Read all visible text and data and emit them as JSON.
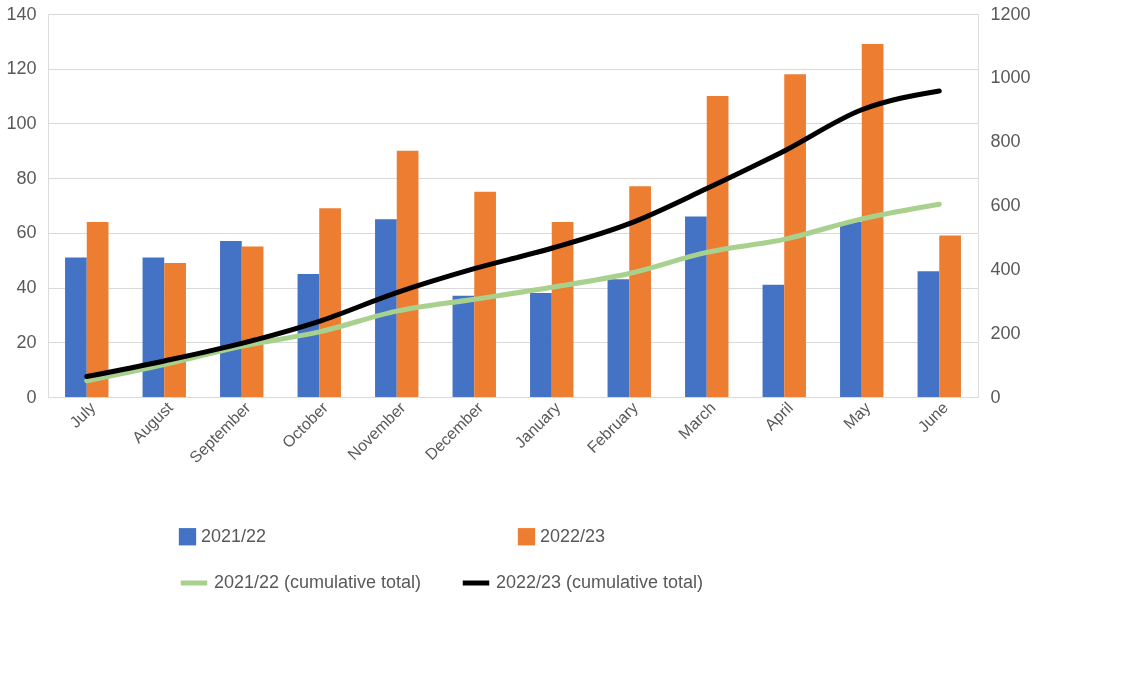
{
  "chart_data": {
    "type": "bar",
    "categories": [
      "July",
      "August",
      "September",
      "October",
      "November",
      "December",
      "January",
      "February",
      "March",
      "April",
      "May",
      "June"
    ],
    "series": [
      {
        "name": "2021/22",
        "color": "#4472c4",
        "values": [
          51,
          51,
          57,
          45,
          65,
          37,
          38,
          43,
          66,
          41,
          64,
          46
        ]
      },
      {
        "name": "2022/23",
        "color": "#ed7d31",
        "values": [
          64,
          49,
          55,
          69,
          90,
          75,
          64,
          77,
          110,
          118,
          129,
          59
        ]
      },
      {
        "name": "2021/22 (cumulative total)",
        "type": "line",
        "axis": "y2",
        "color": "#a9d18e",
        "values": [
          51,
          102,
          159,
          204,
          269,
          306,
          344,
          387,
          453,
          494,
          558,
          604
        ]
      },
      {
        "name": "2022/23 (cumulative total)",
        "type": "line",
        "axis": "y2",
        "color": "#000000",
        "values": [
          64,
          113,
          168,
          237,
          327,
          402,
          466,
          543,
          653,
          771,
          900,
          959
        ]
      }
    ],
    "ylim": [
      0,
      140
    ],
    "yticks": [
      0,
      20,
      40,
      60,
      80,
      100,
      120,
      140
    ],
    "y2lim": [
      0,
      1200
    ],
    "y2ticks": [
      0,
      200,
      400,
      600,
      800,
      1000,
      1200
    ],
    "grid": "y",
    "legend": "bottom",
    "marker": "none",
    "line_style": "solid"
  }
}
